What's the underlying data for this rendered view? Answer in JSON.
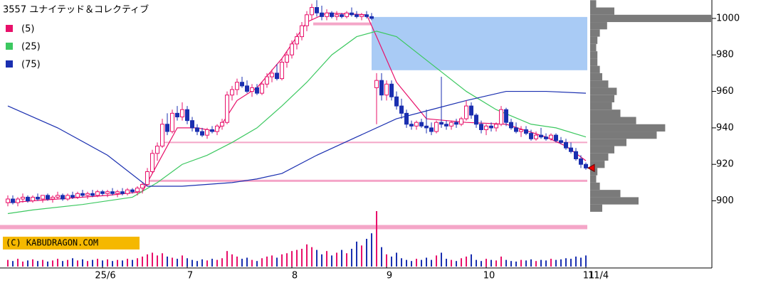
{
  "chart_data": {
    "type": "candlestick",
    "title": "3557 ユナイテッド＆コレクティブ",
    "ylim": [
      881.9,
      1010.1
    ],
    "yticks": [
      900,
      920,
      940,
      960,
      980,
      1000
    ],
    "xticks": [
      {
        "value": 19,
        "label": "25/6"
      },
      {
        "value": 36,
        "label": "7"
      },
      {
        "value": 57,
        "label": "8"
      },
      {
        "value": 76,
        "label": "9"
      },
      {
        "value": 96,
        "label": "10"
      },
      {
        "value": 116,
        "label": "11"
      }
    ],
    "last_date": "11/4",
    "copyright": "(C) KABUDRAGON.COM",
    "up_color": "#e8106a",
    "down_color": "#1a2fb0",
    "ohlc": [
      [
        899,
        903,
        897,
        901
      ],
      [
        901,
        903,
        898,
        899
      ],
      [
        899,
        902,
        897,
        901
      ],
      [
        901,
        904,
        899,
        902
      ],
      [
        902,
        903,
        899,
        900
      ],
      [
        900,
        903,
        899,
        902
      ],
      [
        902,
        904,
        900,
        901
      ],
      [
        901,
        903,
        899,
        903
      ],
      [
        903,
        904,
        900,
        901
      ],
      [
        901,
        903,
        899,
        902
      ],
      [
        902,
        905,
        901,
        903
      ],
      [
        903,
        904,
        900,
        901
      ],
      [
        901,
        904,
        900,
        903
      ],
      [
        903,
        905,
        901,
        902
      ],
      [
        902,
        905,
        901,
        904
      ],
      [
        904,
        906,
        902,
        903
      ],
      [
        903,
        905,
        901,
        904
      ],
      [
        904,
        906,
        902,
        903
      ],
      [
        903,
        906,
        902,
        905
      ],
      [
        905,
        906,
        903,
        904
      ],
      [
        904,
        906,
        902,
        905
      ],
      [
        905,
        907,
        903,
        904
      ],
      [
        904,
        906,
        902,
        905
      ],
      [
        905,
        907,
        903,
        904
      ],
      [
        904,
        907,
        903,
        906
      ],
      [
        906,
        907,
        904,
        905
      ],
      [
        905,
        908,
        903,
        907
      ],
      [
        907,
        910,
        904,
        909
      ],
      [
        909,
        918,
        908,
        916
      ],
      [
        916,
        928,
        915,
        926
      ],
      [
        926,
        932,
        922,
        930
      ],
      [
        930,
        945,
        929,
        942
      ],
      [
        942,
        948,
        936,
        938
      ],
      [
        938,
        950,
        937,
        948
      ],
      [
        948,
        952,
        944,
        946
      ],
      [
        946,
        954,
        944,
        950
      ],
      [
        950,
        952,
        942,
        944
      ],
      [
        944,
        946,
        938,
        940
      ],
      [
        940,
        942,
        936,
        938
      ],
      [
        938,
        940,
        935,
        936
      ],
      [
        936,
        940,
        934,
        939
      ],
      [
        939,
        941,
        937,
        938
      ],
      [
        938,
        942,
        936,
        941
      ],
      [
        941,
        945,
        939,
        943
      ],
      [
        943,
        960,
        942,
        958
      ],
      [
        958,
        963,
        955,
        961
      ],
      [
        961,
        967,
        958,
        965
      ],
      [
        965,
        968,
        962,
        963
      ],
      [
        963,
        966,
        959,
        960
      ],
      [
        960,
        964,
        957,
        962
      ],
      [
        962,
        964,
        958,
        959
      ],
      [
        959,
        965,
        958,
        964
      ],
      [
        964,
        970,
        962,
        968
      ],
      [
        968,
        972,
        965,
        970
      ],
      [
        970,
        975,
        966,
        967
      ],
      [
        967,
        978,
        966,
        976
      ],
      [
        976,
        982,
        973,
        980
      ],
      [
        980,
        988,
        978,
        986
      ],
      [
        986,
        992,
        983,
        990
      ],
      [
        990,
        998,
        988,
        996
      ],
      [
        996,
        1004,
        993,
        1002
      ],
      [
        1002,
        1008,
        999,
        1006
      ],
      [
        1006,
        1010,
        1001,
        1003
      ],
      [
        1003,
        1007,
        999,
        1001
      ],
      [
        1001,
        1005,
        999,
        1003
      ],
      [
        1003,
        1004,
        1000,
        1001
      ],
      [
        1001,
        1004,
        999,
        1002
      ],
      [
        1002,
        1003,
        1000,
        1001
      ],
      [
        1001,
        1004,
        1000,
        1003
      ],
      [
        1003,
        1006,
        1001,
        1002
      ],
      [
        1002,
        1004,
        1000,
        1001
      ],
      [
        1001,
        1003,
        999,
        1002
      ],
      [
        1002,
        1004,
        1000,
        1001
      ],
      [
        1001,
        1003,
        999,
        1000
      ],
      [
        962,
        970,
        942,
        966
      ],
      [
        966,
        970,
        955,
        958
      ],
      [
        958,
        966,
        955,
        964
      ],
      [
        964,
        966,
        955,
        957
      ],
      [
        957,
        960,
        950,
        952
      ],
      [
        952,
        956,
        945,
        948
      ],
      [
        948,
        950,
        940,
        942
      ],
      [
        942,
        944,
        939,
        941
      ],
      [
        941,
        944,
        939,
        943
      ],
      [
        943,
        945,
        940,
        941
      ],
      [
        941,
        950,
        937,
        940
      ],
      [
        940,
        943,
        936,
        938
      ],
      [
        938,
        944,
        937,
        943
      ],
      [
        943,
        968,
        940,
        942
      ],
      [
        942,
        944,
        939,
        941
      ],
      [
        941,
        944,
        939,
        943
      ],
      [
        943,
        945,
        940,
        942
      ],
      [
        942,
        946,
        941,
        945
      ],
      [
        945,
        955,
        944,
        952
      ],
      [
        952,
        954,
        945,
        947
      ],
      [
        947,
        948,
        940,
        942
      ],
      [
        942,
        944,
        937,
        939
      ],
      [
        939,
        942,
        936,
        941
      ],
      [
        941,
        943,
        938,
        940
      ],
      [
        940,
        943,
        938,
        942
      ],
      [
        942,
        952,
        941,
        950
      ],
      [
        950,
        951,
        941,
        943
      ],
      [
        943,
        945,
        939,
        940
      ],
      [
        940,
        943,
        937,
        938
      ],
      [
        938,
        941,
        935,
        939
      ],
      [
        939,
        941,
        936,
        937
      ],
      [
        937,
        939,
        933,
        934
      ],
      [
        934,
        938,
        933,
        936
      ],
      [
        936,
        940,
        934,
        935
      ],
      [
        935,
        937,
        933,
        934
      ],
      [
        934,
        937,
        933,
        936
      ],
      [
        936,
        937,
        932,
        933
      ],
      [
        933,
        935,
        931,
        932
      ],
      [
        932,
        934,
        928,
        929
      ],
      [
        929,
        932,
        926,
        927
      ],
      [
        927,
        929,
        922,
        923
      ],
      [
        923,
        925,
        918,
        920
      ],
      [
        920,
        921,
        917,
        918
      ]
    ],
    "volume": [
      12,
      10,
      14,
      9,
      11,
      13,
      10,
      12,
      9,
      11,
      14,
      10,
      12,
      15,
      11,
      13,
      10,
      12,
      14,
      11,
      13,
      10,
      12,
      11,
      14,
      12,
      15,
      18,
      22,
      25,
      20,
      24,
      18,
      16,
      14,
      20,
      15,
      12,
      10,
      13,
      11,
      14,
      12,
      15,
      28,
      22,
      18,
      14,
      16,
      12,
      10,
      15,
      18,
      20,
      16,
      22,
      24,
      28,
      30,
      32,
      40,
      35,
      30,
      22,
      28,
      20,
      25,
      30,
      24,
      32,
      45,
      38,
      50,
      60,
      100,
      35,
      22,
      18,
      25,
      15,
      12,
      10,
      14,
      12,
      16,
      12,
      20,
      25,
      14,
      12,
      10,
      15,
      18,
      22,
      12,
      10,
      14,
      12,
      11,
      18,
      12,
      10,
      9,
      12,
      11,
      13,
      10,
      12,
      11,
      14,
      12,
      13,
      15,
      14,
      18,
      16,
      20
    ],
    "ma": [
      {
        "name": "(5)",
        "color": "#e8106a",
        "x": [
          0,
          10,
          20,
          27,
          30,
          34,
          38,
          42,
          46,
          50,
          55,
          60,
          64,
          72,
          74,
          78,
          84,
          92,
          100,
          108,
          112,
          116
        ],
        "values": [
          899,
          901,
          903,
          905,
          920,
          940,
          940,
          938,
          955,
          962,
          978,
          998,
          1003,
          1002,
          990,
          965,
          945,
          943,
          942,
          935,
          930,
          922
        ]
      },
      {
        "name": "(25)",
        "color": "#3cc860",
        "x": [
          0,
          5,
          15,
          25,
          30,
          35,
          40,
          45,
          50,
          55,
          60,
          65,
          70,
          74,
          78,
          85,
          92,
          98,
          105,
          110,
          116
        ],
        "values": [
          893,
          895,
          898,
          902,
          910,
          920,
          925,
          932,
          940,
          952,
          965,
          980,
          990,
          993,
          990,
          975,
          960,
          950,
          942,
          940,
          935
        ]
      },
      {
        "name": "(75)",
        "color": "#1a2fb0",
        "x": [
          0,
          10,
          20,
          28,
          35,
          45,
          50,
          55,
          62,
          70,
          78,
          85,
          92,
          100,
          108,
          116
        ],
        "values": [
          952,
          940,
          925,
          908,
          908,
          910,
          912,
          915,
          925,
          935,
          945,
          950,
          955,
          960,
          960,
          959
        ]
      }
    ],
    "levels": [
      997,
      932,
      911,
      885.6
    ],
    "zone": [
      971.6,
      1000.8
    ],
    "profile_prices": [
      896,
      900,
      904,
      908,
      912,
      916,
      920,
      924,
      928,
      932,
      936,
      940,
      944,
      948,
      952,
      956,
      960,
      964,
      968,
      972,
      976,
      980,
      984,
      988,
      992,
      996,
      1000,
      1004,
      1008
    ],
    "profile_volumes": [
      10,
      40,
      25,
      8,
      5,
      6,
      12,
      15,
      20,
      30,
      55,
      62,
      38,
      25,
      18,
      20,
      22,
      15,
      10,
      8,
      6,
      6,
      5,
      6,
      8,
      14,
      100,
      20,
      5
    ]
  }
}
